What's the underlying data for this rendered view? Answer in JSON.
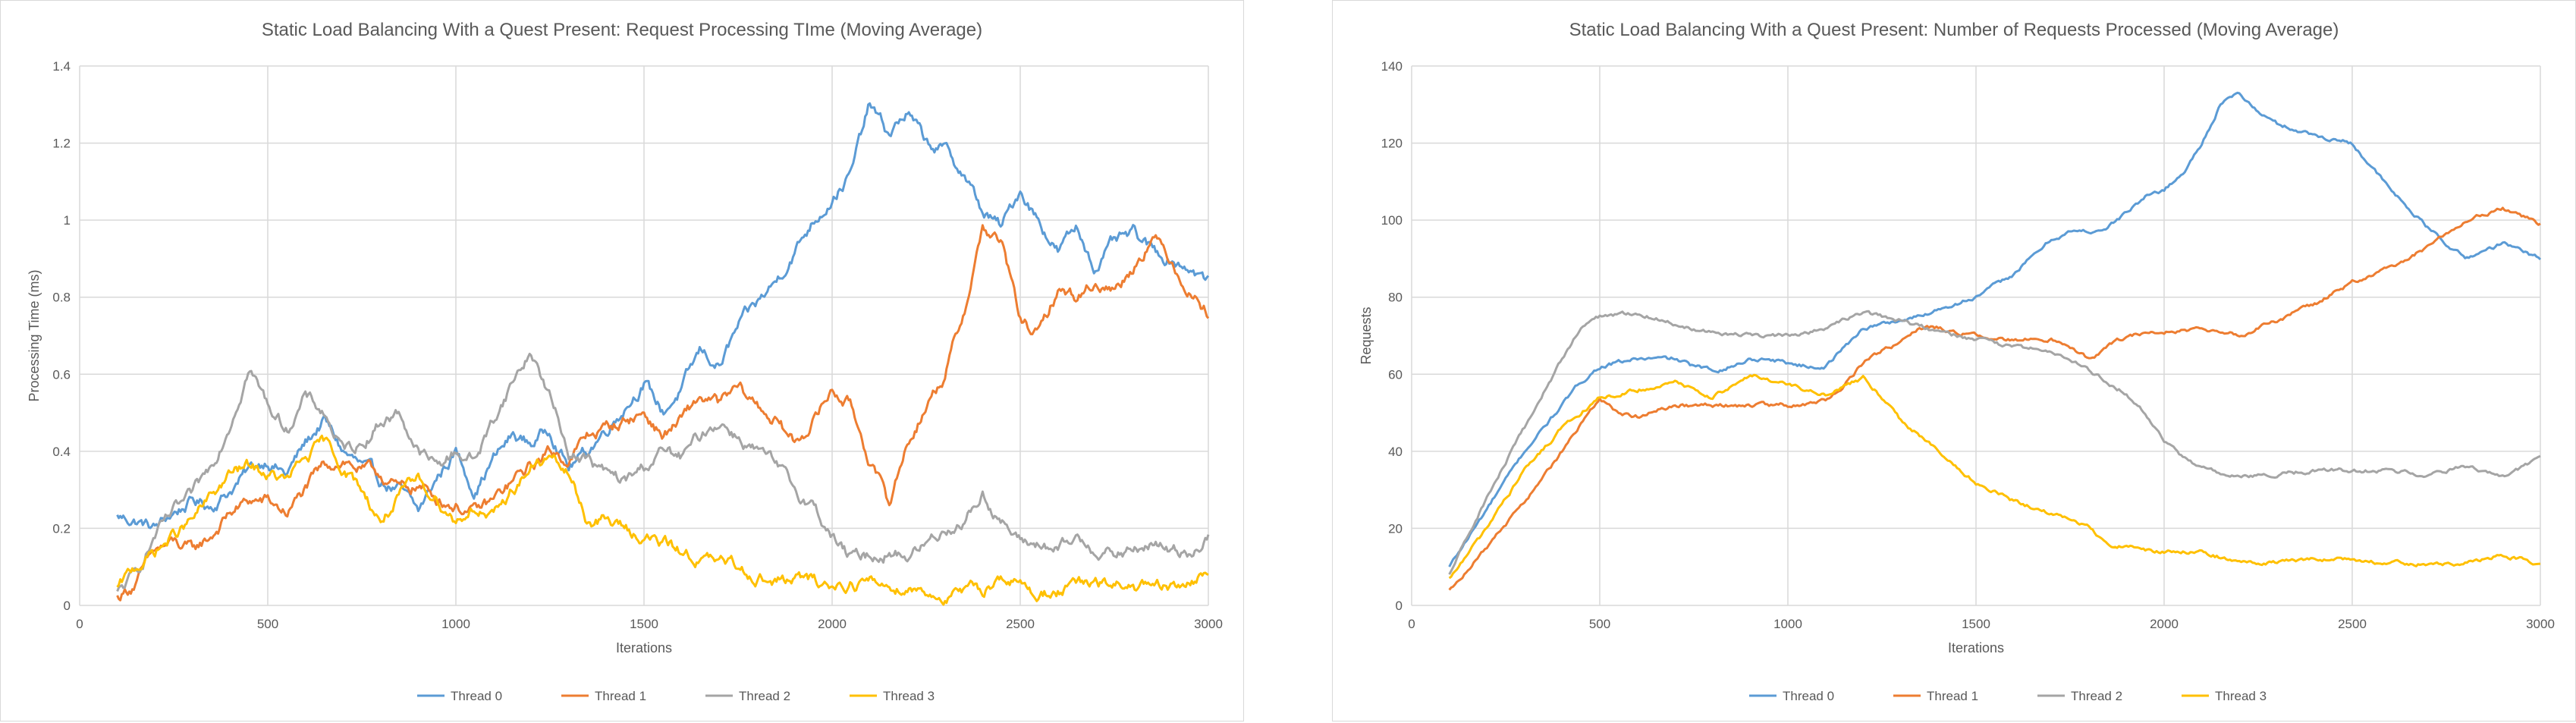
{
  "colors": {
    "thread0": "#5b9bd5",
    "thread1": "#ed7d31",
    "thread2": "#a5a5a5",
    "thread3": "#ffc000",
    "grid": "#d9d9d9",
    "text": "#595959"
  },
  "chart_data": [
    {
      "type": "line",
      "title": "Static Load Balancing With a Quest Present: Request Processing TIme (Moving Average)",
      "xlabel": "Iterations",
      "ylabel": "Processing Time (ms)",
      "xlim": [
        0,
        3000
      ],
      "ylim": [
        0,
        1.4
      ],
      "xticks": [
        0,
        500,
        1000,
        1500,
        2000,
        2500,
        3000
      ],
      "xtick_labels": [
        "0",
        "500",
        "1000",
        "1500",
        "2000",
        "2500",
        "3000"
      ],
      "yticks": [
        0,
        0.2,
        0.4,
        0.6,
        0.8,
        1,
        1.2,
        1.4
      ],
      "ytick_labels": [
        "0",
        "0.2",
        "0.4",
        "0.6",
        "0.8",
        "1",
        "1.2",
        "1.4"
      ],
      "grid": true,
      "legend": "bottom",
      "noise": true,
      "series": [
        {
          "name": "Thread 0",
          "color": "#5b9bd5",
          "x": [
            100,
            150,
            200,
            250,
            300,
            350,
            400,
            450,
            500,
            550,
            600,
            650,
            700,
            750,
            800,
            850,
            900,
            950,
            1000,
            1050,
            1100,
            1150,
            1200,
            1250,
            1300,
            1350,
            1400,
            1450,
            1500,
            1550,
            1600,
            1650,
            1700,
            1750,
            1800,
            1850,
            1900,
            1950,
            2000,
            2050,
            2100,
            2150,
            2200,
            2250,
            2300,
            2350,
            2400,
            2450,
            2500,
            2550,
            2600,
            2650,
            2700,
            2750,
            2800,
            2850,
            2900,
            2950,
            3000
          ],
          "y": [
            0.23,
            0.22,
            0.2,
            0.24,
            0.27,
            0.26,
            0.3,
            0.35,
            0.38,
            0.34,
            0.42,
            0.48,
            0.4,
            0.36,
            0.32,
            0.3,
            0.24,
            0.33,
            0.4,
            0.3,
            0.38,
            0.44,
            0.42,
            0.46,
            0.36,
            0.4,
            0.46,
            0.52,
            0.58,
            0.5,
            0.56,
            0.66,
            0.62,
            0.72,
            0.78,
            0.84,
            0.92,
            1.0,
            1.06,
            1.12,
            1.3,
            1.22,
            1.28,
            1.2,
            1.18,
            1.12,
            1.02,
            0.98,
            1.08,
            1.0,
            0.92,
            0.98,
            0.88,
            0.94,
            0.96,
            0.92,
            0.9,
            0.88,
            0.84
          ]
        },
        {
          "name": "Thread 1",
          "color": "#ed7d31",
          "x": [
            100,
            150,
            200,
            250,
            300,
            350,
            400,
            450,
            500,
            550,
            600,
            650,
            700,
            750,
            800,
            850,
            900,
            950,
            1000,
            1050,
            1100,
            1150,
            1200,
            1250,
            1300,
            1350,
            1400,
            1450,
            1500,
            1550,
            1600,
            1650,
            1700,
            1750,
            1800,
            1850,
            1900,
            1950,
            2000,
            2050,
            2100,
            2150,
            2200,
            2250,
            2300,
            2350,
            2400,
            2450,
            2500,
            2550,
            2600,
            2650,
            2700,
            2750,
            2800,
            2850,
            2900,
            2950,
            3000
          ],
          "y": [
            0.02,
            0.06,
            0.14,
            0.16,
            0.14,
            0.18,
            0.24,
            0.27,
            0.27,
            0.24,
            0.3,
            0.36,
            0.38,
            0.35,
            0.34,
            0.3,
            0.31,
            0.28,
            0.26,
            0.24,
            0.27,
            0.32,
            0.36,
            0.4,
            0.38,
            0.44,
            0.46,
            0.48,
            0.5,
            0.44,
            0.48,
            0.54,
            0.52,
            0.56,
            0.52,
            0.48,
            0.42,
            0.48,
            0.56,
            0.52,
            0.38,
            0.26,
            0.42,
            0.52,
            0.6,
            0.76,
            0.98,
            0.94,
            0.74,
            0.7,
            0.82,
            0.8,
            0.84,
            0.82,
            0.88,
            0.96,
            0.9,
            0.82,
            0.76
          ]
        },
        {
          "name": "Thread 2",
          "color": "#a5a5a5",
          "x": [
            100,
            150,
            200,
            250,
            300,
            350,
            400,
            450,
            500,
            550,
            600,
            650,
            700,
            750,
            800,
            850,
            900,
            950,
            1000,
            1050,
            1100,
            1150,
            1200,
            1250,
            1300,
            1350,
            1400,
            1450,
            1500,
            1550,
            1600,
            1650,
            1700,
            1750,
            1800,
            1850,
            1900,
            1950,
            2000,
            2050,
            2100,
            2150,
            2200,
            2250,
            2300,
            2350,
            2400,
            2450,
            2500,
            2550,
            2600,
            2650,
            2700,
            2750,
            2800,
            2850,
            2900,
            2950,
            3000
          ],
          "y": [
            0.03,
            0.08,
            0.18,
            0.24,
            0.28,
            0.36,
            0.48,
            0.62,
            0.52,
            0.46,
            0.54,
            0.5,
            0.4,
            0.42,
            0.48,
            0.5,
            0.4,
            0.36,
            0.4,
            0.38,
            0.48,
            0.58,
            0.66,
            0.54,
            0.4,
            0.38,
            0.34,
            0.32,
            0.36,
            0.4,
            0.38,
            0.44,
            0.48,
            0.44,
            0.4,
            0.36,
            0.3,
            0.26,
            0.18,
            0.12,
            0.13,
            0.14,
            0.13,
            0.16,
            0.2,
            0.22,
            0.29,
            0.22,
            0.16,
            0.16,
            0.14,
            0.17,
            0.15,
            0.13,
            0.14,
            0.16,
            0.14,
            0.14,
            0.18
          ]
        },
        {
          "name": "Thread 3",
          "color": "#ffc000",
          "x": [
            100,
            150,
            200,
            250,
            300,
            350,
            400,
            450,
            500,
            550,
            600,
            650,
            700,
            750,
            800,
            850,
            900,
            950,
            1000,
            1050,
            1100,
            1150,
            1200,
            1250,
            1300,
            1350,
            1400,
            1450,
            1500,
            1550,
            1600,
            1650,
            1700,
            1750,
            1800,
            1850,
            1900,
            1950,
            2000,
            2050,
            2100,
            2150,
            2200,
            2250,
            2300,
            2350,
            2400,
            2450,
            2500,
            2550,
            2600,
            2650,
            2700,
            2750,
            2800,
            2850,
            2900,
            2950,
            3000
          ],
          "y": [
            0.04,
            0.1,
            0.14,
            0.18,
            0.22,
            0.28,
            0.34,
            0.36,
            0.34,
            0.32,
            0.38,
            0.42,
            0.36,
            0.3,
            0.22,
            0.28,
            0.32,
            0.28,
            0.22,
            0.26,
            0.22,
            0.3,
            0.36,
            0.38,
            0.34,
            0.22,
            0.22,
            0.2,
            0.18,
            0.16,
            0.14,
            0.12,
            0.11,
            0.1,
            0.08,
            0.06,
            0.07,
            0.06,
            0.05,
            0.06,
            0.06,
            0.05,
            0.05,
            0.04,
            0.02,
            0.03,
            0.04,
            0.08,
            0.05,
            0.03,
            0.04,
            0.05,
            0.05,
            0.05,
            0.05,
            0.04,
            0.04,
            0.06,
            0.08
          ]
        }
      ]
    },
    {
      "type": "line",
      "title": "Static Load Balancing With a Quest Present: Number of Requests Processed (Moving Average)",
      "xlabel": "Iterations",
      "ylabel": "Requests",
      "xlim": [
        0,
        3000
      ],
      "ylim": [
        0,
        140
      ],
      "xticks": [
        0,
        500,
        1000,
        1500,
        2000,
        2500,
        3000
      ],
      "xtick_labels": [
        "0",
        "500",
        "1000",
        "1500",
        "2000",
        "2500",
        "3000"
      ],
      "yticks": [
        0,
        20,
        40,
        60,
        80,
        100,
        120,
        140
      ],
      "ytick_labels": [
        "0",
        "20",
        "40",
        "60",
        "80",
        "100",
        "120",
        "140"
      ],
      "grid": true,
      "legend": "bottom",
      "noise": false,
      "series": [
        {
          "name": "Thread 0",
          "color": "#5b9bd5",
          "x": [
            100,
            200,
            300,
            400,
            450,
            500,
            600,
            700,
            750,
            800,
            850,
            900,
            950,
            1000,
            1050,
            1100,
            1150,
            1200,
            1250,
            1300,
            1350,
            1400,
            1500,
            1600,
            1700,
            1750,
            1800,
            1850,
            1900,
            1950,
            2000,
            2050,
            2100,
            2150,
            2200,
            2250,
            2300,
            2400,
            2500,
            2600,
            2700,
            2800,
            2900,
            3000
          ],
          "y": [
            10,
            25,
            40,
            52,
            58,
            62,
            64,
            64,
            62,
            61,
            62,
            64,
            64,
            63,
            62,
            62,
            67,
            72,
            73,
            74,
            75,
            77,
            80,
            86,
            95,
            97,
            97,
            98,
            102,
            106,
            108,
            112,
            120,
            130,
            133,
            128,
            125,
            122,
            120,
            108,
            98,
            90,
            94,
            90
          ]
        },
        {
          "name": "Thread 1",
          "color": "#ed7d31",
          "x": [
            100,
            200,
            300,
            400,
            500,
            550,
            600,
            700,
            800,
            900,
            1000,
            1100,
            1150,
            1200,
            1250,
            1300,
            1350,
            1400,
            1500,
            1600,
            1700,
            1800,
            1900,
            2000,
            2100,
            2200,
            2300,
            2400,
            2500,
            2600,
            2650,
            2700,
            2800,
            2900,
            3000
          ],
          "y": [
            4,
            15,
            27,
            40,
            54,
            50,
            49,
            52,
            52,
            52,
            52,
            53,
            57,
            63,
            66,
            68,
            72,
            72,
            70,
            69,
            69,
            64,
            70,
            71,
            72,
            70,
            74,
            78,
            84,
            88,
            90,
            93,
            100,
            103,
            99
          ]
        },
        {
          "name": "Thread 2",
          "color": "#a5a5a5",
          "x": [
            100,
            200,
            300,
            400,
            450,
            500,
            600,
            700,
            800,
            900,
            1000,
            1100,
            1200,
            1250,
            1300,
            1400,
            1500,
            1600,
            1700,
            1800,
            1900,
            1950,
            2000,
            2050,
            2100,
            2150,
            2200,
            2300,
            2400,
            2500,
            2600,
            2700,
            2800,
            2900,
            3000
          ],
          "y": [
            8,
            28,
            46,
            64,
            72,
            75,
            76,
            73,
            71,
            70,
            70,
            72,
            76,
            75,
            74,
            71,
            69,
            67,
            66,
            61,
            55,
            50,
            43,
            38,
            36,
            34,
            33,
            34,
            35,
            35,
            35,
            34,
            36,
            33,
            38
          ]
        },
        {
          "name": "Thread 3",
          "color": "#ffc000",
          "x": [
            100,
            200,
            300,
            400,
            500,
            600,
            700,
            800,
            900,
            1000,
            1100,
            1200,
            1250,
            1300,
            1400,
            1500,
            1600,
            1700,
            1800,
            1850,
            1900,
            2000,
            2100,
            2200,
            2300,
            2400,
            2500,
            2600,
            2700,
            2800,
            2900,
            3000
          ],
          "y": [
            7,
            20,
            35,
            46,
            54,
            56,
            58,
            54,
            60,
            57,
            55,
            59,
            54,
            48,
            40,
            32,
            27,
            24,
            20,
            16,
            15,
            14,
            14,
            11,
            11,
            12,
            12,
            11,
            11,
            11,
            13,
            11
          ]
        }
      ]
    }
  ]
}
